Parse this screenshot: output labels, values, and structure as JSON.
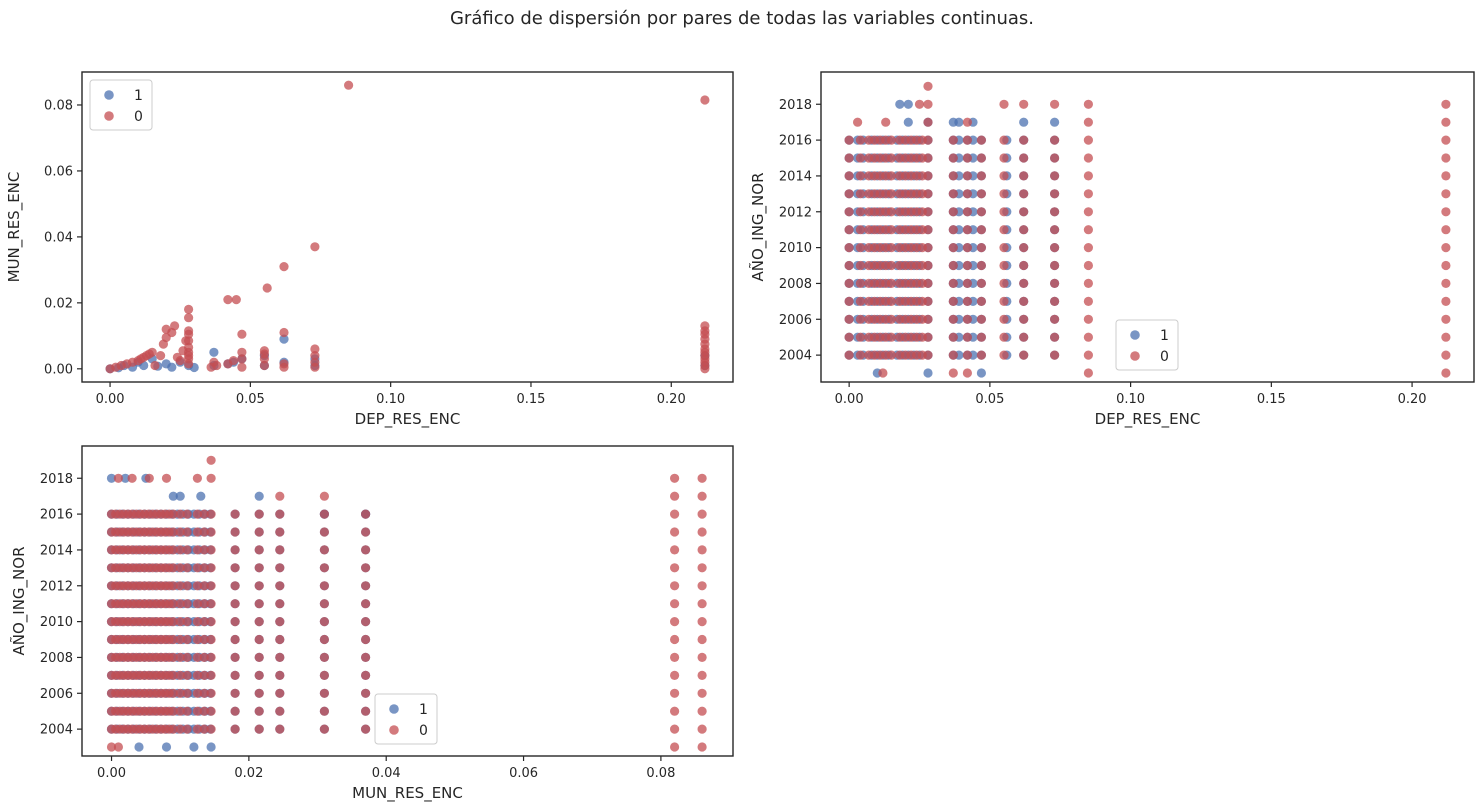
{
  "figure": {
    "suptitle": "Gráfico de dispersión por pares de todas las variables continuas."
  },
  "colors": {
    "series_1": "#4c72b0",
    "series_0": "#c44e52",
    "axes_edge": "#262626",
    "background": "#ffffff"
  },
  "chart_data": [
    {
      "type": "scatter",
      "xlabel": "DEP_RES_ENC",
      "ylabel": "MUN_RES_ENC",
      "xlim": [
        -0.01,
        0.222
      ],
      "ylim": [
        -0.004,
        0.09
      ],
      "xticks": [
        0.0,
        0.05,
        0.1,
        0.15,
        0.2
      ],
      "xtick_labels": [
        "0.00",
        "0.05",
        "0.10",
        "0.15",
        "0.20"
      ],
      "yticks": [
        0.0,
        0.02,
        0.04,
        0.06,
        0.08
      ],
      "ytick_labels": [
        "0.00",
        "0.02",
        "0.04",
        "0.06",
        "0.08"
      ],
      "legend_placement": "upper-left",
      "grid": false,
      "series": [
        {
          "name": "1",
          "color_key": "series_1",
          "points": [
            [
              0.0,
              0.0
            ],
            [
              0.003,
              0.0003
            ],
            [
              0.005,
              0.001
            ],
            [
              0.008,
              0.0005
            ],
            [
              0.01,
              0.002
            ],
            [
              0.012,
              0.001
            ],
            [
              0.015,
              0.003
            ],
            [
              0.017,
              0.0008
            ],
            [
              0.02,
              0.0015
            ],
            [
              0.022,
              0.0005
            ],
            [
              0.025,
              0.002
            ],
            [
              0.028,
              0.001
            ],
            [
              0.03,
              0.0004
            ],
            [
              0.037,
              0.005
            ],
            [
              0.037,
              0.001
            ],
            [
              0.042,
              0.0015
            ],
            [
              0.044,
              0.002
            ],
            [
              0.047,
              0.003
            ],
            [
              0.055,
              0.001
            ],
            [
              0.055,
              0.004
            ],
            [
              0.062,
              0.002
            ],
            [
              0.062,
              0.009
            ],
            [
              0.073,
              0.001
            ],
            [
              0.073,
              0.003
            ],
            [
              0.212,
              0.001
            ],
            [
              0.212,
              0.004
            ]
          ]
        },
        {
          "name": "0",
          "color_key": "series_0",
          "points": [
            [
              0.0,
              0.0
            ],
            [
              0.002,
              0.0005
            ],
            [
              0.004,
              0.001
            ],
            [
              0.006,
              0.0015
            ],
            [
              0.008,
              0.002
            ],
            [
              0.01,
              0.0025
            ],
            [
              0.011,
              0.003
            ],
            [
              0.012,
              0.0035
            ],
            [
              0.013,
              0.004
            ],
            [
              0.014,
              0.0045
            ],
            [
              0.015,
              0.005
            ],
            [
              0.016,
              0.001
            ],
            [
              0.018,
              0.004
            ],
            [
              0.019,
              0.0075
            ],
            [
              0.02,
              0.0095
            ],
            [
              0.02,
              0.012
            ],
            [
              0.022,
              0.011
            ],
            [
              0.023,
              0.013
            ],
            [
              0.024,
              0.0035
            ],
            [
              0.025,
              0.0025
            ],
            [
              0.026,
              0.0055
            ],
            [
              0.027,
              0.0085
            ],
            [
              0.028,
              0.0015
            ],
            [
              0.028,
              0.003
            ],
            [
              0.028,
              0.004
            ],
            [
              0.028,
              0.005
            ],
            [
              0.028,
              0.0065
            ],
            [
              0.028,
              0.0085
            ],
            [
              0.028,
              0.0105
            ],
            [
              0.028,
              0.0115
            ],
            [
              0.028,
              0.0155
            ],
            [
              0.028,
              0.018
            ],
            [
              0.036,
              0.0005
            ],
            [
              0.037,
              0.002
            ],
            [
              0.038,
              0.001
            ],
            [
              0.042,
              0.0015
            ],
            [
              0.042,
              0.021
            ],
            [
              0.044,
              0.0025
            ],
            [
              0.045,
              0.021
            ],
            [
              0.047,
              0.0005
            ],
            [
              0.047,
              0.003
            ],
            [
              0.047,
              0.005
            ],
            [
              0.047,
              0.0105
            ],
            [
              0.055,
              0.001
            ],
            [
              0.055,
              0.003
            ],
            [
              0.055,
              0.0045
            ],
            [
              0.055,
              0.0055
            ],
            [
              0.056,
              0.0245
            ],
            [
              0.062,
              0.0005
            ],
            [
              0.062,
              0.0015
            ],
            [
              0.062,
              0.011
            ],
            [
              0.062,
              0.031
            ],
            [
              0.073,
              0.0005
            ],
            [
              0.073,
              0.002
            ],
            [
              0.073,
              0.004
            ],
            [
              0.073,
              0.006
            ],
            [
              0.073,
              0.037
            ],
            [
              0.085,
              0.086
            ],
            [
              0.212,
              0.0
            ],
            [
              0.212,
              0.001
            ],
            [
              0.212,
              0.002
            ],
            [
              0.212,
              0.003
            ],
            [
              0.212,
              0.004
            ],
            [
              0.212,
              0.005
            ],
            [
              0.212,
              0.006
            ],
            [
              0.212,
              0.0075
            ],
            [
              0.212,
              0.009
            ],
            [
              0.212,
              0.0105
            ],
            [
              0.212,
              0.0115
            ],
            [
              0.212,
              0.013
            ],
            [
              0.212,
              0.0815
            ]
          ]
        }
      ]
    },
    {
      "type": "scatter",
      "xlabel": "DEP_RES_ENC",
      "ylabel": "AÑO_ING_NOR",
      "xlim": [
        -0.01,
        0.222
      ],
      "ylim": [
        2002.5,
        2019.8
      ],
      "xticks": [
        0.0,
        0.05,
        0.1,
        0.15,
        0.2
      ],
      "xtick_labels": [
        "0.00",
        "0.05",
        "0.10",
        "0.15",
        "0.20"
      ],
      "yticks": [
        2004,
        2006,
        2008,
        2010,
        2012,
        2014,
        2016,
        2018
      ],
      "ytick_labels": [
        "2004",
        "2006",
        "2008",
        "2010",
        "2012",
        "2014",
        "2016",
        "2018"
      ],
      "legend_placement": "lower-center",
      "grid": false,
      "series": [
        {
          "name": "1",
          "color_key": "series_1",
          "x_values": [
            0.0,
            0.003,
            0.005,
            0.008,
            0.01,
            0.012,
            0.014,
            0.017,
            0.019,
            0.021,
            0.023,
            0.025,
            0.028,
            0.037,
            0.039,
            0.042,
            0.044,
            0.047,
            0.056,
            0.062,
            0.073
          ],
          "y_range": [
            2004,
            2016
          ],
          "extra_points": [
            [
              0.018,
              2018
            ],
            [
              0.021,
              2018
            ],
            [
              0.021,
              2017
            ],
            [
              0.028,
              2017
            ],
            [
              0.037,
              2017
            ],
            [
              0.039,
              2017
            ],
            [
              0.044,
              2017
            ],
            [
              0.062,
              2017
            ],
            [
              0.073,
              2017
            ],
            [
              0.01,
              2003
            ],
            [
              0.028,
              2003
            ],
            [
              0.047,
              2003
            ]
          ]
        },
        {
          "name": "0",
          "color_key": "series_0",
          "x_values": [
            0.0,
            0.004,
            0.007,
            0.009,
            0.011,
            0.013,
            0.015,
            0.018,
            0.02,
            0.022,
            0.024,
            0.026,
            0.028,
            0.037,
            0.042,
            0.047,
            0.055,
            0.062,
            0.073,
            0.085,
            0.212
          ],
          "y_range": [
            2004,
            2016
          ],
          "extra_points": [
            [
              0.003,
              2017
            ],
            [
              0.013,
              2017
            ],
            [
              0.025,
              2018
            ],
            [
              0.028,
              2018
            ],
            [
              0.028,
              2019
            ],
            [
              0.028,
              2017
            ],
            [
              0.042,
              2017
            ],
            [
              0.055,
              2018
            ],
            [
              0.062,
              2018
            ],
            [
              0.073,
              2018
            ],
            [
              0.085,
              2018
            ],
            [
              0.085,
              2017
            ],
            [
              0.212,
              2018
            ],
            [
              0.212,
              2017
            ],
            [
              0.212,
              2003
            ],
            [
              0.012,
              2003
            ],
            [
              0.037,
              2003
            ],
            [
              0.042,
              2003
            ],
            [
              0.085,
              2003
            ]
          ]
        }
      ]
    },
    {
      "type": "scatter",
      "xlabel": "MUN_RES_ENC",
      "ylabel": "AÑO_ING_NOR",
      "xlim": [
        -0.0043,
        0.0905
      ],
      "ylim": [
        2002.5,
        2019.8
      ],
      "xticks": [
        0.0,
        0.02,
        0.04,
        0.06,
        0.08
      ],
      "xtick_labels": [
        "0.00",
        "0.02",
        "0.04",
        "0.06",
        "0.08"
      ],
      "yticks": [
        2004,
        2006,
        2008,
        2010,
        2012,
        2014,
        2016,
        2018
      ],
      "ytick_labels": [
        "2004",
        "2006",
        "2008",
        "2010",
        "2012",
        "2014",
        "2016",
        "2018"
      ],
      "legend_placement": "lower-center",
      "grid": false,
      "series": [
        {
          "name": "1",
          "color_key": "series_1",
          "x_values": [
            0.0,
            0.0008,
            0.0016,
            0.0024,
            0.0032,
            0.004,
            0.0048,
            0.0056,
            0.0064,
            0.0072,
            0.008,
            0.0088,
            0.0096,
            0.0104,
            0.0112,
            0.012,
            0.0128,
            0.0136,
            0.0144,
            0.018,
            0.0215,
            0.0245,
            0.031,
            0.037
          ],
          "y_range": [
            2004,
            2016
          ],
          "extra_points": [
            [
              0.0,
              2018
            ],
            [
              0.002,
              2018
            ],
            [
              0.005,
              2018
            ],
            [
              0.009,
              2017
            ],
            [
              0.01,
              2017
            ],
            [
              0.013,
              2017
            ],
            [
              0.0215,
              2017
            ],
            [
              0.031,
              2016
            ],
            [
              0.037,
              2016
            ],
            [
              0.008,
              2003
            ],
            [
              0.012,
              2003
            ],
            [
              0.0145,
              2003
            ],
            [
              0.004,
              2003
            ]
          ]
        },
        {
          "name": "0",
          "color_key": "series_0",
          "x_values": [
            0.0,
            0.0006,
            0.0012,
            0.0018,
            0.0024,
            0.003,
            0.0036,
            0.0042,
            0.0048,
            0.0054,
            0.006,
            0.0066,
            0.0072,
            0.0078,
            0.0084,
            0.009,
            0.01,
            0.011,
            0.0125,
            0.0135,
            0.0145,
            0.018,
            0.0215,
            0.0245,
            0.031,
            0.037,
            0.082,
            0.086
          ],
          "y_range": [
            2004,
            2016
          ],
          "extra_points": [
            [
              0.001,
              2018
            ],
            [
              0.003,
              2018
            ],
            [
              0.0055,
              2018
            ],
            [
              0.008,
              2018
            ],
            [
              0.0125,
              2018
            ],
            [
              0.0145,
              2018
            ],
            [
              0.0145,
              2019
            ],
            [
              0.0245,
              2017
            ],
            [
              0.031,
              2017
            ],
            [
              0.082,
              2018
            ],
            [
              0.082,
              2017
            ],
            [
              0.086,
              2018
            ],
            [
              0.086,
              2017
            ],
            [
              0.0,
              2003
            ],
            [
              0.001,
              2003
            ],
            [
              0.082,
              2003
            ],
            [
              0.086,
              2003
            ]
          ]
        }
      ]
    }
  ]
}
